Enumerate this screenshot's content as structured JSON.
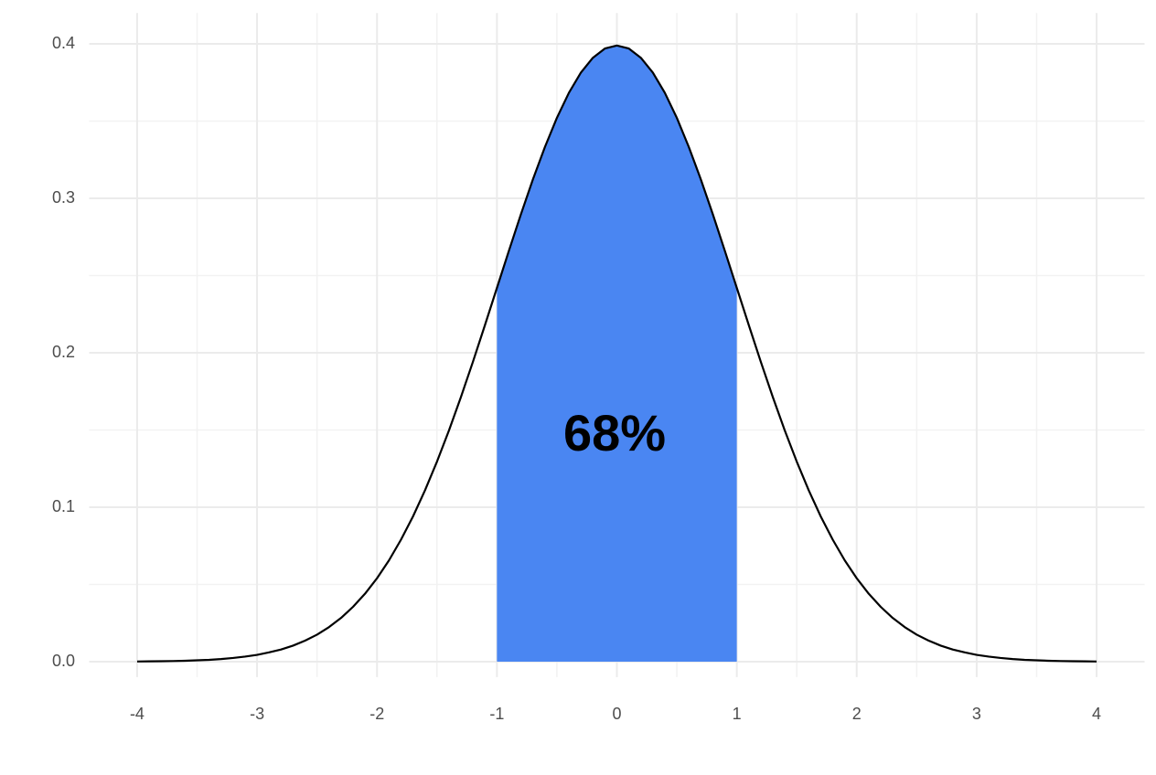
{
  "chart_data": {
    "type": "line",
    "annotation": "68%",
    "x": [
      -4.0,
      -3.9,
      -3.8,
      -3.7,
      -3.6,
      -3.5,
      -3.4,
      -3.3,
      -3.2,
      -3.1,
      -3.0,
      -2.9,
      -2.8,
      -2.7,
      -2.6,
      -2.5,
      -2.4,
      -2.3,
      -2.2,
      -2.1,
      -2.0,
      -1.9,
      -1.8,
      -1.7,
      -1.6,
      -1.5,
      -1.4,
      -1.3,
      -1.2,
      -1.1,
      -1.0,
      -0.9,
      -0.8,
      -0.7,
      -0.6,
      -0.5,
      -0.4,
      -0.3,
      -0.2,
      -0.1,
      0.0,
      0.1,
      0.2,
      0.3,
      0.4,
      0.5,
      0.6,
      0.7,
      0.8,
      0.9,
      1.0,
      1.1,
      1.2,
      1.3,
      1.4,
      1.5,
      1.6,
      1.7,
      1.8,
      1.9,
      2.0,
      2.1,
      2.2,
      2.3,
      2.4,
      2.5,
      2.6,
      2.7,
      2.8,
      2.9,
      3.0,
      3.1,
      3.2,
      3.3,
      3.4,
      3.5,
      3.6,
      3.7,
      3.8,
      3.9,
      4.0
    ],
    "values": [
      0.0001,
      0.0002,
      0.0003,
      0.0004,
      0.0006,
      0.0009,
      0.0012,
      0.0017,
      0.0024,
      0.0033,
      0.0044,
      0.006,
      0.0079,
      0.0104,
      0.0136,
      0.0175,
      0.0224,
      0.0283,
      0.0355,
      0.044,
      0.054,
      0.0656,
      0.079,
      0.094,
      0.1109,
      0.1295,
      0.1497,
      0.1714,
      0.1942,
      0.2179,
      0.242,
      0.2661,
      0.2897,
      0.3123,
      0.3332,
      0.3521,
      0.3683,
      0.3814,
      0.391,
      0.397,
      0.3989,
      0.397,
      0.391,
      0.3814,
      0.3683,
      0.3521,
      0.3332,
      0.3123,
      0.2897,
      0.2661,
      0.242,
      0.2179,
      0.1942,
      0.1714,
      0.1497,
      0.1295,
      0.1109,
      0.094,
      0.079,
      0.0656,
      0.054,
      0.044,
      0.0355,
      0.0283,
      0.0224,
      0.0175,
      0.0136,
      0.0104,
      0.0079,
      0.006,
      0.0044,
      0.0033,
      0.0024,
      0.0017,
      0.0012,
      0.0009,
      0.0006,
      0.0004,
      0.0003,
      0.0002,
      0.0001
    ],
    "color": "#000000",
    "highlight_range": [
      -1,
      1
    ],
    "highlight_color": "#4a86f2",
    "xlim": [
      -4.4,
      4.4
    ],
    "ylim": [
      -0.01,
      0.42
    ],
    "xticks": [
      -4,
      -3,
      -2,
      -1,
      0,
      1,
      2,
      3,
      4
    ],
    "yticks": [
      {
        "value": 0,
        "label": "0.0"
      },
      0.1,
      0.2,
      0.3,
      0.4
    ],
    "grid": true,
    "minor_grid": true
  }
}
